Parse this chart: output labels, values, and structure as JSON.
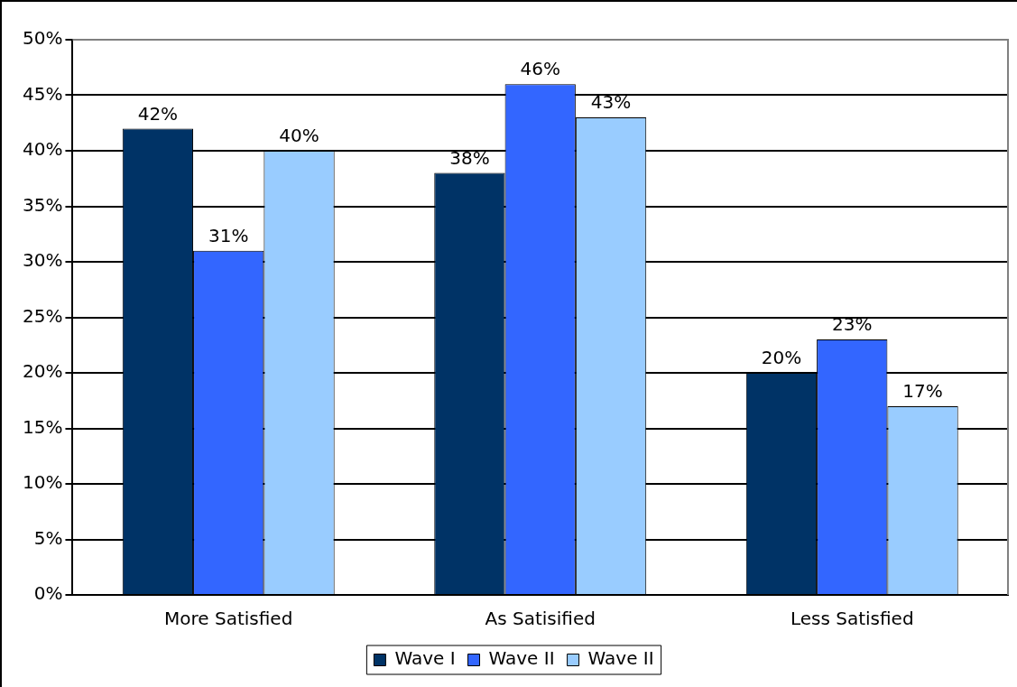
{
  "chart_data": {
    "type": "bar",
    "categories": [
      "More Satisfied",
      "As Satisified",
      "Less Satisfied"
    ],
    "series": [
      {
        "name": "Wave I",
        "color": "#003366",
        "values": [
          42,
          38,
          20
        ],
        "value_labels": [
          "42%",
          "38%",
          "20%"
        ]
      },
      {
        "name": "Wave II",
        "color": "#3366ff",
        "values": [
          31,
          46,
          23
        ],
        "value_labels": [
          "31%",
          "46%",
          "23%"
        ]
      },
      {
        "name": "Wave II",
        "color": "#99ccff",
        "values": [
          40,
          43,
          17
        ],
        "value_labels": [
          "40%",
          "43%",
          "17%"
        ]
      }
    ],
    "ylim": [
      0,
      50
    ],
    "yticks": [
      {
        "value": 0,
        "label": "0%"
      },
      {
        "value": 5,
        "label": "5%"
      },
      {
        "value": 10,
        "label": "10%"
      },
      {
        "value": 15,
        "label": "15%"
      },
      {
        "value": 20,
        "label": "20%"
      },
      {
        "value": 25,
        "label": "25%"
      },
      {
        "value": 30,
        "label": "30%"
      },
      {
        "value": 35,
        "label": "35%"
      },
      {
        "value": 40,
        "label": "40%"
      },
      {
        "value": 45,
        "label": "45%"
      },
      {
        "value": 50,
        "label": "50%"
      }
    ],
    "grid": "y",
    "legend": "bottom"
  }
}
